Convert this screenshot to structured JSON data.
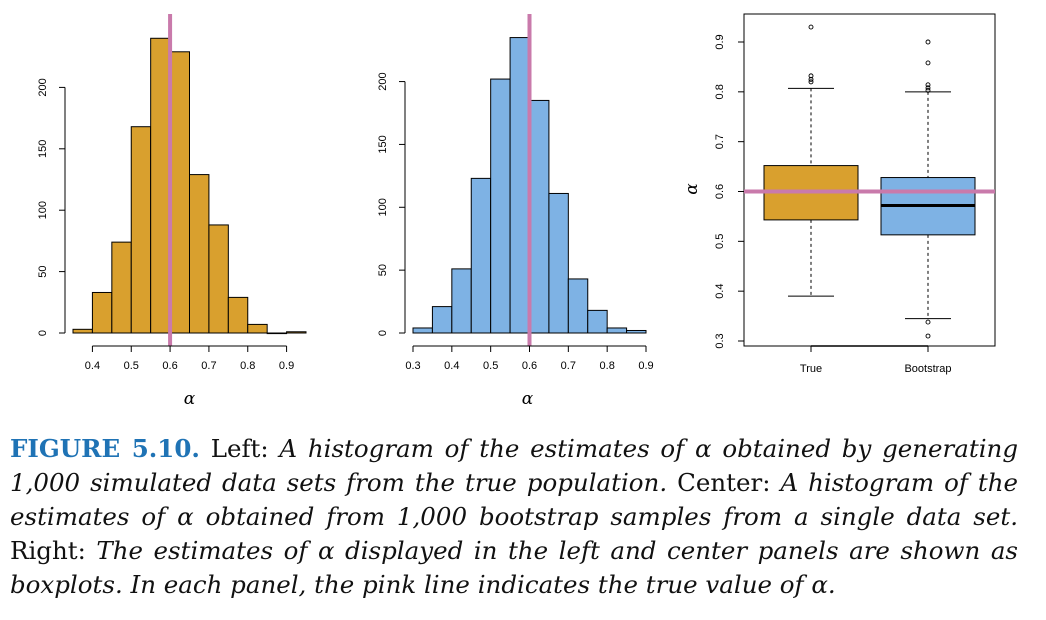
{
  "chart_data": [
    {
      "type": "bar",
      "name": "left-histogram",
      "bin_edges": [
        0.35,
        0.4,
        0.45,
        0.5,
        0.55,
        0.6,
        0.65,
        0.7,
        0.75,
        0.8,
        0.85,
        0.9,
        0.95
      ],
      "values": [
        3,
        33,
        74,
        168,
        240,
        229,
        129,
        88,
        29,
        7,
        0,
        1
      ],
      "xlabel": "α",
      "ylabel": "",
      "xticks": [
        "0.4",
        "0.5",
        "0.6",
        "0.7",
        "0.8",
        "0.9"
      ],
      "yticks": [
        "0",
        "50",
        "100",
        "150",
        "200"
      ],
      "xlim": [
        0.35,
        0.95
      ],
      "ylim": [
        0,
        250
      ],
      "true_value": 0.6,
      "bar_color": "#d9a02e",
      "line_color": "#c97aab"
    },
    {
      "type": "bar",
      "name": "center-histogram",
      "bin_edges": [
        0.3,
        0.35,
        0.4,
        0.45,
        0.5,
        0.55,
        0.6,
        0.65,
        0.7,
        0.75,
        0.8,
        0.85,
        0.9
      ],
      "values": [
        4,
        21,
        51,
        123,
        202,
        235,
        185,
        111,
        43,
        18,
        4,
        2
      ],
      "xlabel": "α",
      "ylabel": "",
      "xticks": [
        "0.3",
        "0.4",
        "0.5",
        "0.6",
        "0.7",
        "0.8",
        "0.9"
      ],
      "yticks": [
        "0",
        "50",
        "100",
        "150",
        "200"
      ],
      "xlim": [
        0.3,
        0.9
      ],
      "ylim": [
        0,
        245
      ],
      "true_value": 0.6,
      "bar_color": "#7eb2e4",
      "line_color": "#c97aab"
    },
    {
      "type": "boxplot",
      "name": "right-boxplot",
      "categories": [
        "True",
        "Bootstrap"
      ],
      "ylabel": "α",
      "yticks": [
        "0.3",
        "0.4",
        "0.5",
        "0.6",
        "0.7",
        "0.8",
        "0.9"
      ],
      "ylim": [
        0.295,
        0.95
      ],
      "true_value": 0.6,
      "line_color": "#c97aab",
      "boxes": [
        {
          "name": "True",
          "whisker_low": 0.39,
          "q1": 0.543,
          "median": 0.6,
          "q3": 0.652,
          "whisker_high": 0.807,
          "outliers": [
            0.82,
            0.825,
            0.832,
            0.93
          ],
          "color": "#d9a02e"
        },
        {
          "name": "Bootstrap",
          "whisker_low": 0.345,
          "q1": 0.513,
          "median": 0.572,
          "q3": 0.628,
          "whisker_high": 0.8,
          "outliers": [
            0.31,
            0.338,
            0.803,
            0.808,
            0.814,
            0.858,
            0.9
          ],
          "color": "#7eb2e4"
        }
      ]
    }
  ],
  "caption": {
    "label": "FIGURE 5.10.",
    "s1_head": "Left:",
    "s1_em": "A histogram of the estimates of α obtained by generating 1,000 simulated data sets from the true population.",
    "s2_head": "Center:",
    "s2_em": "A histogram of the estimates of α obtained from 1,000 bootstrap samples from a single data set.",
    "s3_head": "Right:",
    "s3_em": "The estimates of α displayed in the left and center panels are shown as boxplots. In each panel, the pink line indicates the true value of α."
  }
}
